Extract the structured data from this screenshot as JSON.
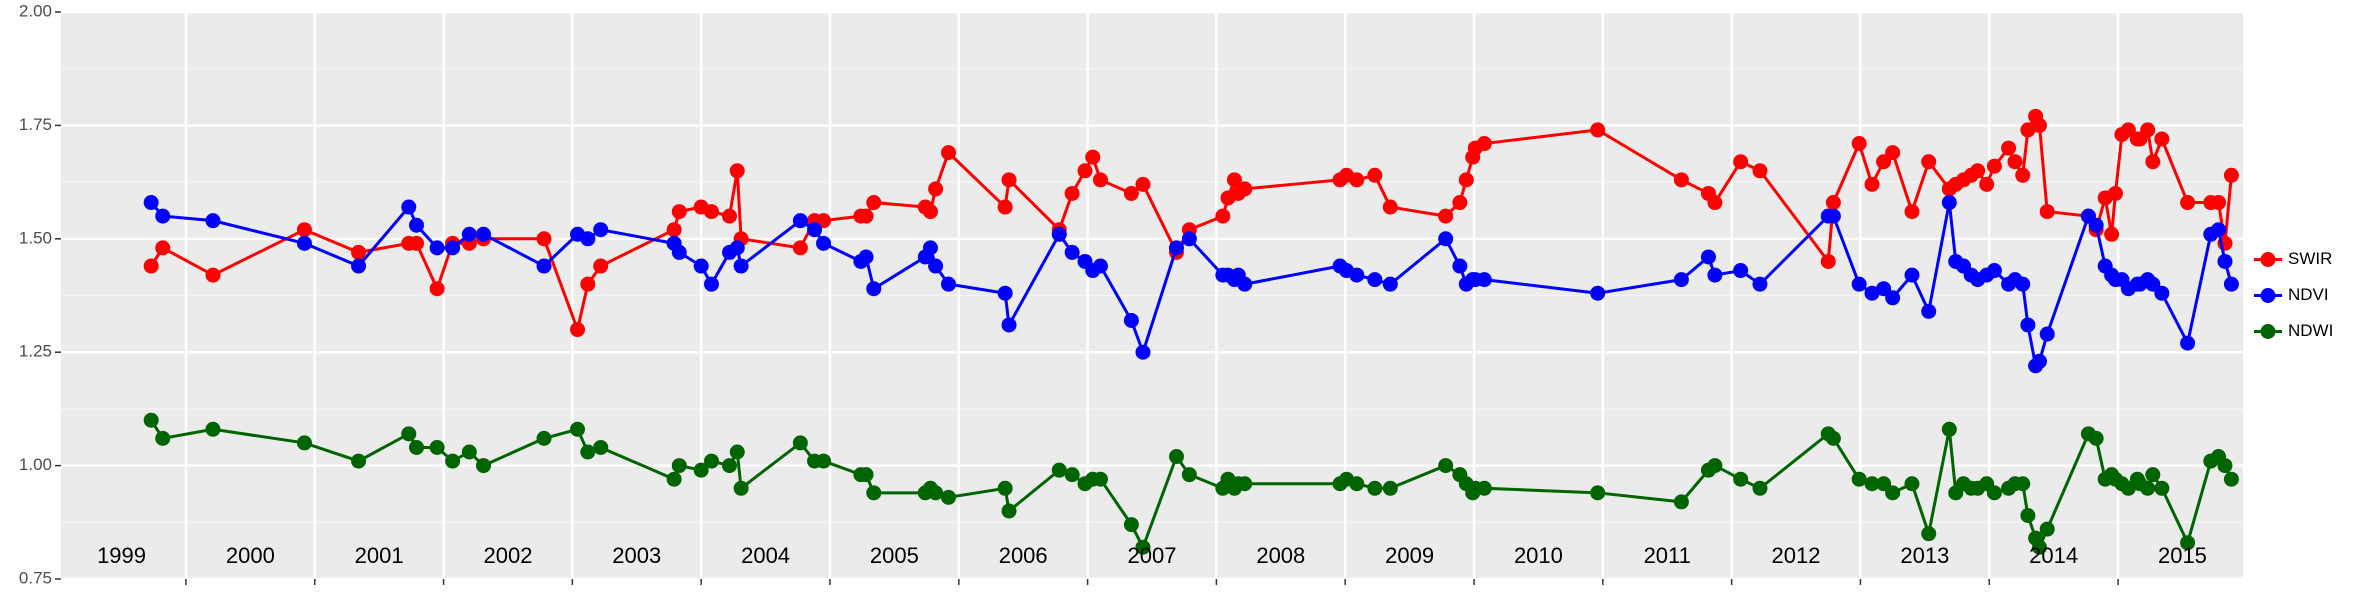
{
  "chart_data": {
    "type": "line",
    "x": [
      1999.73,
      1999.82,
      2000.21,
      2000.92,
      2001.34,
      2001.73,
      2001.79,
      2001.95,
      2002.07,
      2002.2,
      2002.31,
      2002.78,
      2003.04,
      2003.12,
      2003.22,
      2003.79,
      2003.83,
      2004.0,
      2004.08,
      2004.22,
      2004.28,
      2004.31,
      2004.77,
      2004.88,
      2004.95,
      2005.24,
      2005.28,
      2005.34,
      2005.74,
      2005.78,
      2005.82,
      2005.92,
      2006.36,
      2006.39,
      2006.78,
      2006.88,
      2006.98,
      2007.04,
      2007.1,
      2007.34,
      2007.43,
      2007.69,
      2007.79,
      2008.05,
      2008.09,
      2008.14,
      2008.17,
      2008.22,
      2008.96,
      2009.01,
      2009.09,
      2009.23,
      2009.35,
      2009.78,
      2009.89,
      2009.94,
      2009.99,
      2010.01,
      2010.08,
      2010.96,
      2011.61,
      2011.82,
      2011.87,
      2012.07,
      2012.22,
      2012.75,
      2012.79,
      2012.99,
      2013.09,
      2013.18,
      2013.25,
      2013.4,
      2013.53,
      2013.69,
      2013.74,
      2013.8,
      2013.86,
      2013.91,
      2013.98,
      2014.04,
      2014.15,
      2014.2,
      2014.26,
      2014.3,
      2014.36,
      2014.39,
      2014.45,
      2014.77,
      2014.83,
      2014.9,
      2014.95,
      2014.98,
      2015.03,
      2015.08,
      2015.15,
      2015.17,
      2015.23,
      2015.27,
      2015.34,
      2015.54,
      2015.72,
      2015.78,
      2015.83,
      2015.88
    ],
    "series": [
      {
        "name": "SWIR",
        "color": "#ff0000",
        "values": [
          1.44,
          1.48,
          1.42,
          1.52,
          1.47,
          1.49,
          1.49,
          1.39,
          1.49,
          1.49,
          1.5,
          1.5,
          1.3,
          1.4,
          1.44,
          1.52,
          1.56,
          1.57,
          1.56,
          1.55,
          1.65,
          1.5,
          1.48,
          1.54,
          1.54,
          1.55,
          1.55,
          1.58,
          1.57,
          1.56,
          1.61,
          1.69,
          1.57,
          1.63,
          1.52,
          1.6,
          1.65,
          1.68,
          1.63,
          1.6,
          1.62,
          1.47,
          1.52,
          1.55,
          1.59,
          1.63,
          1.6,
          1.61,
          1.63,
          1.64,
          1.63,
          1.64,
          1.57,
          1.55,
          1.58,
          1.63,
          1.68,
          1.7,
          1.71,
          1.74,
          1.63,
          1.6,
          1.58,
          1.67,
          1.65,
          1.45,
          1.58,
          1.71,
          1.62,
          1.67,
          1.69,
          1.56,
          1.67,
          1.61,
          1.62,
          1.63,
          1.64,
          1.65,
          1.62,
          1.66,
          1.7,
          1.67,
          1.64,
          1.74,
          1.77,
          1.75,
          1.56,
          1.55,
          1.52,
          1.59,
          1.51,
          1.6,
          1.73,
          1.74,
          1.72,
          1.72,
          1.74,
          1.67,
          1.72,
          1.58,
          1.58,
          1.58,
          1.49,
          1.64
        ]
      },
      {
        "name": "NDVI",
        "color": "#0000ff",
        "values": [
          1.58,
          1.55,
          1.54,
          1.49,
          1.44,
          1.57,
          1.53,
          1.48,
          1.48,
          1.51,
          1.51,
          1.44,
          1.51,
          1.5,
          1.52,
          1.49,
          1.47,
          1.44,
          1.4,
          1.47,
          1.48,
          1.44,
          1.54,
          1.52,
          1.49,
          1.45,
          1.46,
          1.39,
          1.46,
          1.48,
          1.44,
          1.4,
          1.38,
          1.31,
          1.51,
          1.47,
          1.45,
          1.43,
          1.44,
          1.32,
          1.25,
          1.48,
          1.5,
          1.42,
          1.42,
          1.41,
          1.42,
          1.4,
          1.44,
          1.43,
          1.42,
          1.41,
          1.4,
          1.5,
          1.44,
          1.4,
          1.41,
          1.41,
          1.41,
          1.38,
          1.41,
          1.46,
          1.42,
          1.43,
          1.4,
          1.55,
          1.55,
          1.4,
          1.38,
          1.39,
          1.37,
          1.42,
          1.34,
          1.58,
          1.45,
          1.44,
          1.42,
          1.41,
          1.42,
          1.43,
          1.4,
          1.41,
          1.4,
          1.31,
          1.22,
          1.23,
          1.29,
          1.55,
          1.53,
          1.44,
          1.42,
          1.41,
          1.41,
          1.39,
          1.4,
          1.4,
          1.41,
          1.4,
          1.38,
          1.27,
          1.51,
          1.52,
          1.45,
          1.4
        ]
      },
      {
        "name": "NDWI",
        "color": "#006400",
        "values": [
          1.1,
          1.06,
          1.08,
          1.05,
          1.01,
          1.07,
          1.04,
          1.04,
          1.01,
          1.03,
          1.0,
          1.06,
          1.08,
          1.03,
          1.04,
          0.97,
          1.0,
          0.99,
          1.01,
          1.0,
          1.03,
          0.95,
          1.05,
          1.01,
          1.01,
          0.98,
          0.98,
          0.94,
          0.94,
          0.95,
          0.94,
          0.93,
          0.95,
          0.9,
          0.99,
          0.98,
          0.96,
          0.97,
          0.97,
          0.87,
          0.82,
          1.02,
          0.98,
          0.95,
          0.97,
          0.95,
          0.96,
          0.96,
          0.96,
          0.97,
          0.96,
          0.95,
          0.95,
          1.0,
          0.98,
          0.96,
          0.94,
          0.95,
          0.95,
          0.94,
          0.92,
          0.99,
          1.0,
          0.97,
          0.95,
          1.07,
          1.06,
          0.97,
          0.96,
          0.96,
          0.94,
          0.96,
          0.85,
          1.08,
          0.94,
          0.96,
          0.95,
          0.95,
          0.96,
          0.94,
          0.95,
          0.96,
          0.96,
          0.89,
          0.84,
          0.82,
          0.86,
          1.07,
          1.06,
          0.97,
          0.98,
          0.97,
          0.96,
          0.95,
          0.97,
          0.96,
          0.95,
          0.98,
          0.95,
          0.83,
          1.01,
          1.02,
          1.0,
          0.97
        ]
      }
    ],
    "xlim": [
      1999.03,
      2015.97
    ],
    "xticks": [
      2000,
      2001,
      2002,
      2003,
      2004,
      2005,
      2006,
      2007,
      2008,
      2009,
      2010,
      2011,
      2012,
      2013,
      2014,
      2015
    ],
    "year_labels": [
      {
        "value": 1999.5,
        "label": "1999"
      },
      {
        "value": 2000.5,
        "label": "2000"
      },
      {
        "value": 2001.5,
        "label": "2001"
      },
      {
        "value": 2002.5,
        "label": "2002"
      },
      {
        "value": 2003.5,
        "label": "2003"
      },
      {
        "value": 2004.5,
        "label": "2004"
      },
      {
        "value": 2005.5,
        "label": "2005"
      },
      {
        "value": 2006.5,
        "label": "2006"
      },
      {
        "value": 2007.5,
        "label": "2007"
      },
      {
        "value": 2008.5,
        "label": "2008"
      },
      {
        "value": 2009.5,
        "label": "2009"
      },
      {
        "value": 2010.5,
        "label": "2010"
      },
      {
        "value": 2011.5,
        "label": "2011"
      },
      {
        "value": 2012.5,
        "label": "2012"
      },
      {
        "value": 2013.5,
        "label": "2013"
      },
      {
        "value": 2014.5,
        "label": "2014"
      },
      {
        "value": 2015.5,
        "label": "2015"
      }
    ],
    "ylim": [
      0.75,
      2.0
    ],
    "yticks": [
      0.75,
      {
        "value": 1,
        "label": "1.00"
      },
      1.25,
      {
        "value": 1.5,
        "label": "1.50"
      },
      1.75,
      {
        "value": 2,
        "label": "2.00"
      }
    ],
    "grid": true,
    "legend": "right"
  }
}
